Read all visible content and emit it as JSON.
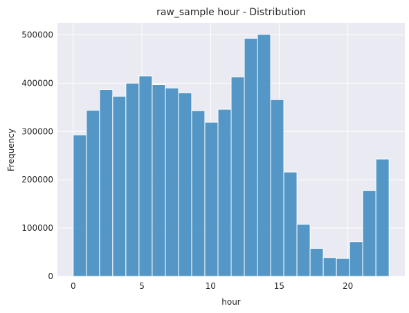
{
  "chart_data": {
    "type": "bar",
    "title": "raw_sample hour - Distribution",
    "xlabel": "hour",
    "ylabel": "Frequency",
    "bins": [
      {
        "start": 0.0,
        "end": 0.958,
        "value": 293000
      },
      {
        "start": 0.958,
        "end": 1.917,
        "value": 344000
      },
      {
        "start": 1.917,
        "end": 2.875,
        "value": 387000
      },
      {
        "start": 2.875,
        "end": 3.833,
        "value": 373000
      },
      {
        "start": 3.833,
        "end": 4.792,
        "value": 400000
      },
      {
        "start": 4.792,
        "end": 5.75,
        "value": 415000
      },
      {
        "start": 5.75,
        "end": 6.708,
        "value": 397000
      },
      {
        "start": 6.708,
        "end": 7.667,
        "value": 390000
      },
      {
        "start": 7.667,
        "end": 8.625,
        "value": 380000
      },
      {
        "start": 8.625,
        "end": 9.583,
        "value": 343000
      },
      {
        "start": 9.583,
        "end": 10.542,
        "value": 319000
      },
      {
        "start": 10.542,
        "end": 11.5,
        "value": 346000
      },
      {
        "start": 11.5,
        "end": 12.458,
        "value": 413000
      },
      {
        "start": 12.458,
        "end": 13.417,
        "value": 493000
      },
      {
        "start": 13.417,
        "end": 14.375,
        "value": 501000
      },
      {
        "start": 14.375,
        "end": 15.333,
        "value": 366000
      },
      {
        "start": 15.333,
        "end": 16.292,
        "value": 216000
      },
      {
        "start": 16.292,
        "end": 17.25,
        "value": 108000
      },
      {
        "start": 17.25,
        "end": 18.208,
        "value": 58000
      },
      {
        "start": 18.208,
        "end": 19.167,
        "value": 39000
      },
      {
        "start": 19.167,
        "end": 20.125,
        "value": 37000
      },
      {
        "start": 20.125,
        "end": 21.083,
        "value": 72000
      },
      {
        "start": 21.083,
        "end": 22.042,
        "value": 178000
      },
      {
        "start": 22.042,
        "end": 23.0,
        "value": 243000
      }
    ],
    "xlim": [
      -1.15,
      24.15
    ],
    "ylim": [
      0,
      525000
    ],
    "xticks": [
      0,
      5,
      10,
      15,
      20
    ],
    "xtick_labels": [
      "0",
      "5",
      "10",
      "15",
      "20"
    ],
    "yticks": [
      0,
      100000,
      200000,
      300000,
      400000,
      500000
    ],
    "ytick_labels": [
      "0",
      "100000",
      "200000",
      "300000",
      "400000",
      "500000"
    ],
    "grid": true,
    "colors": {
      "bar_fill": "#4C92C3",
      "bar_edge": "#ffffff",
      "plot_background": "#EAEAF2",
      "grid": "#ffffff",
      "text": "#262626"
    }
  }
}
